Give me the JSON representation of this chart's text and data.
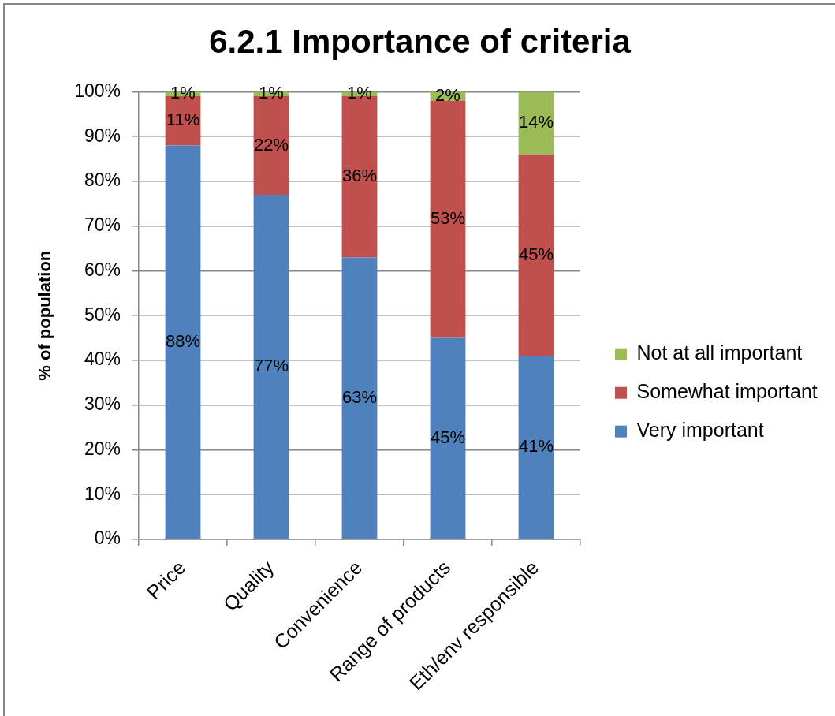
{
  "chart_data": {
    "type": "bar",
    "title": "6.2.1 Importance of criteria",
    "ylabel": "% of population",
    "categories": [
      "Price",
      "Quality",
      "Convenience",
      "Range of products",
      "Eth/env responsible"
    ],
    "stacked": true,
    "series": [
      {
        "name": "Very important",
        "color": "#4f81bd",
        "values": [
          88,
          77,
          63,
          45,
          41
        ],
        "value_labels": [
          "88%",
          "77%",
          "63%",
          "45%",
          "41%"
        ]
      },
      {
        "name": "Somewhat important",
        "color": "#c0504d",
        "values": [
          11,
          22,
          36,
          53,
          45
        ],
        "value_labels": [
          "11%",
          "22%",
          "36%",
          "53%",
          "45%"
        ]
      },
      {
        "name": "Not at all important",
        "color": "#9bbb59",
        "values": [
          1,
          1,
          1,
          2,
          14
        ],
        "value_labels": [
          "1%",
          "1%",
          "1%",
          "2%",
          "14%"
        ]
      }
    ],
    "ylim": [
      0,
      100
    ],
    "yticks": [
      {
        "value": 0,
        "label": "0%"
      },
      {
        "value": 10,
        "label": "10%"
      },
      {
        "value": 20,
        "label": "20%"
      },
      {
        "value": 30,
        "label": "30%"
      },
      {
        "value": 40,
        "label": "40%"
      },
      {
        "value": 50,
        "label": "50%"
      },
      {
        "value": 60,
        "label": "60%"
      },
      {
        "value": 70,
        "label": "70%"
      },
      {
        "value": 80,
        "label": "80%"
      },
      {
        "value": 90,
        "label": "90%"
      },
      {
        "value": 100,
        "label": "100%"
      }
    ],
    "grid": "y",
    "legend": "right"
  }
}
